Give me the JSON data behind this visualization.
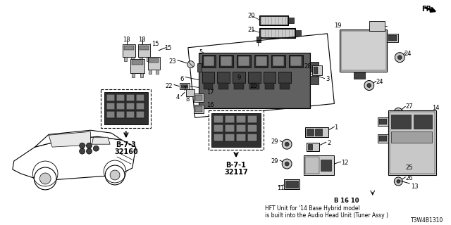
{
  "bg_color": "#ffffff",
  "fig_width": 6.4,
  "fig_height": 3.2,
  "dpi": 100,
  "diagram_number": "T3W4B1310",
  "note_ref": "B 16 10",
  "note_line1": "HFT Unit for '14 Base Hybrid model",
  "note_line2": "is built into the Audio Head Unit (Tuner Assy )",
  "ref_b73_line1": "B-7-3",
  "ref_b73_line2": "32160",
  "ref_b71_line1": "B-7-1",
  "ref_b71_line2": "32117",
  "fr_label": "FR.",
  "black": "#000000",
  "gray_dark": "#404040",
  "gray_med": "#888888",
  "gray_light": "#cccccc",
  "gray_fill": "#b0b0b0",
  "white": "#ffffff"
}
